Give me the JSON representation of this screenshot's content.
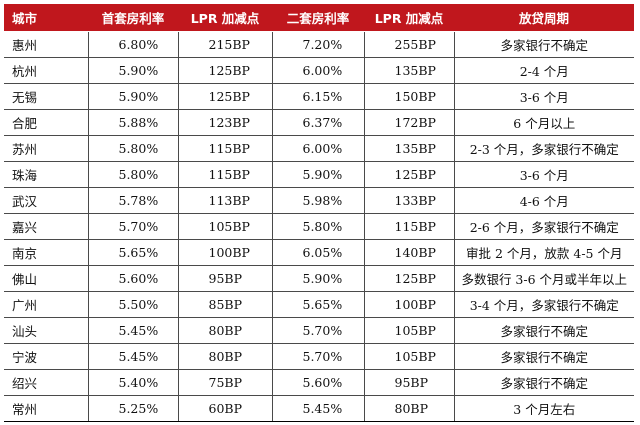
{
  "headers": [
    "城市",
    "首套房利率",
    "LPR 加减点",
    "二套房利率",
    "LPR 加减点",
    "放贷周期"
  ],
  "rows": [
    [
      "惠州",
      "6.80%",
      "215BP",
      "7.20%",
      "255BP",
      "多家银行不确定"
    ],
    [
      "杭州",
      "5.90%",
      "125BP",
      "6.00%",
      "135BP",
      "2-4 个月"
    ],
    [
      "无锡",
      "5.90%",
      "125BP",
      "6.15%",
      "150BP",
      "3-6 个月"
    ],
    [
      "合肥",
      "5.88%",
      "123BP",
      "6.37%",
      "172BP",
      "6 个月以上"
    ],
    [
      "苏州",
      "5.80%",
      "115BP",
      "6.00%",
      "135BP",
      "2-3 个月，多家银行不确定"
    ],
    [
      "珠海",
      "5.80%",
      "115BP",
      "5.90%",
      "125BP",
      "3-6 个月"
    ],
    [
      "武汉",
      "5.78%",
      "113BP",
      "5.98%",
      "133BP",
      "4-6 个月"
    ],
    [
      "嘉兴",
      "5.70%",
      "105BP",
      "5.80%",
      "115BP",
      "2-6 个月，多家银行不确定"
    ],
    [
      "南京",
      "5.65%",
      "100BP",
      "6.05%",
      "140BP",
      "审批 2 个月，放款 4-5 个月"
    ],
    [
      "佛山",
      "5.60%",
      "95BP",
      "5.90%",
      "125BP",
      "多数银行 3-6 个月或半年以上"
    ],
    [
      "广州",
      "5.50%",
      "85BP",
      "5.65%",
      "100BP",
      "3-4 个月，多家银行不确定"
    ],
    [
      "汕头",
      "5.45%",
      "80BP",
      "5.70%",
      "105BP",
      "多家银行不确定"
    ],
    [
      "宁波",
      "5.45%",
      "80BP",
      "5.70%",
      "105BP",
      "多家银行不确定"
    ],
    [
      "绍兴",
      "5.40%",
      "75BP",
      "5.60%",
      "95BP",
      "多家银行不确定"
    ],
    [
      "常州",
      "5.25%",
      "60BP",
      "5.45%",
      "80BP",
      "3 个月左右"
    ]
  ],
  "colors": {
    "header_bg": "#c0171d",
    "header_text": "#ffffff",
    "grid": "#4a4a4a"
  }
}
